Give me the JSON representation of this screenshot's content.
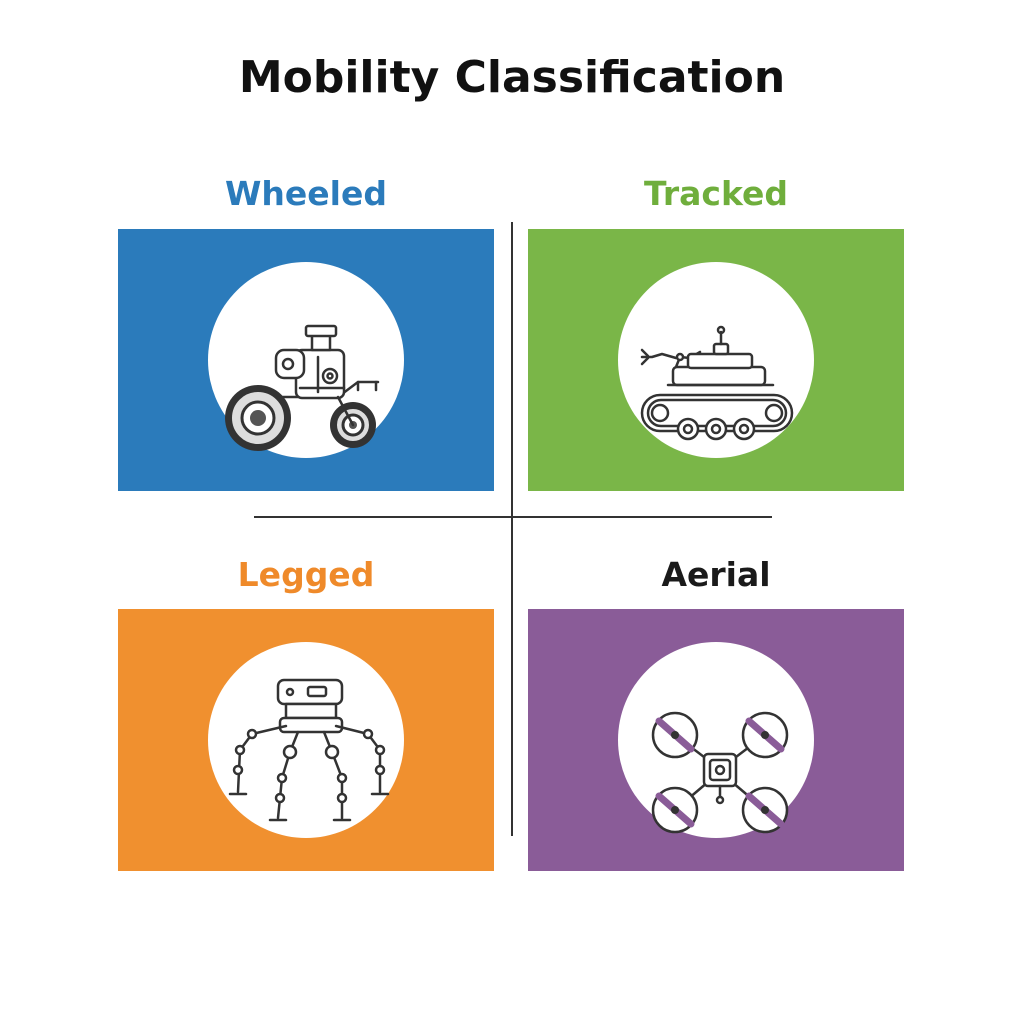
{
  "title": "Mobility Classification",
  "quadrants": [
    {
      "label": "Wheeled",
      "color": "#2b7bbb",
      "label_color": "#2b7bbb",
      "icon": "wheeled-robot-icon"
    },
    {
      "label": "Tracked",
      "color": "#7ab648",
      "label_color": "#6fae3c",
      "icon": "tracked-robot-icon"
    },
    {
      "label": "Legged",
      "color": "#f0902f",
      "label_color": "#ef8a2a",
      "icon": "legged-robot-icon"
    },
    {
      "label": "Aerial",
      "color": "#8a5c98",
      "label_color": "#1a1a1a",
      "icon": "drone-icon"
    }
  ]
}
